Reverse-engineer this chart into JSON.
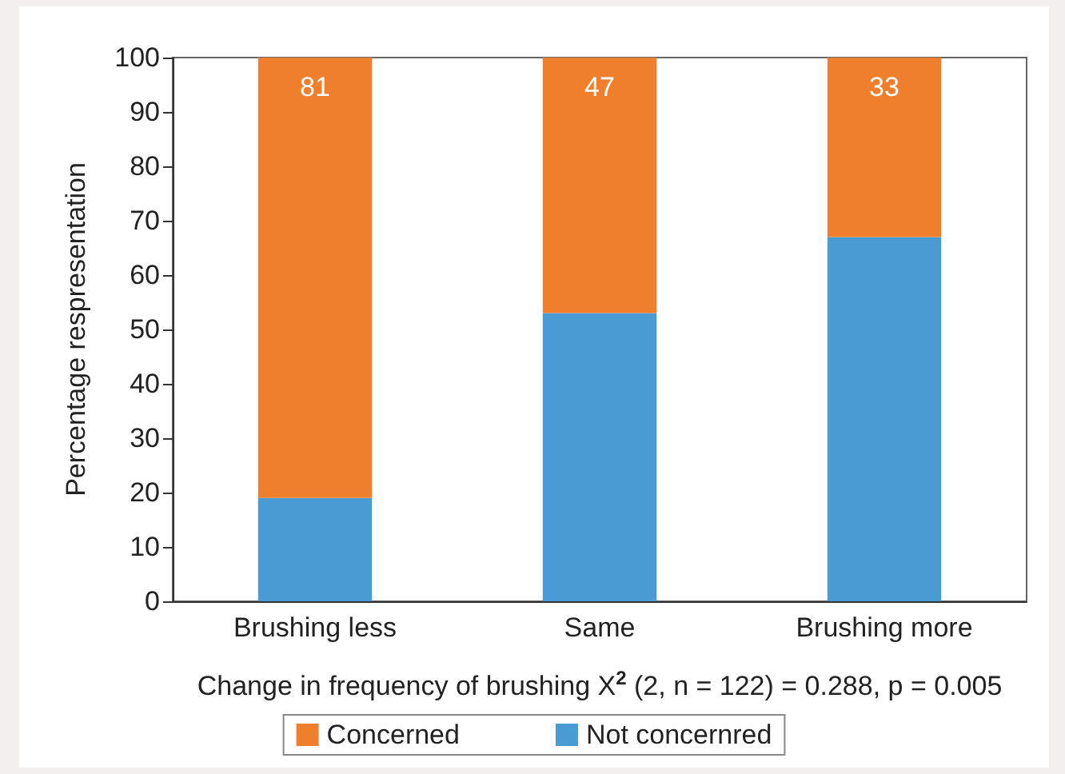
{
  "chart_data": {
    "type": "bar",
    "stacked": true,
    "categories": [
      "Brushing less",
      "Same",
      "Brushing more"
    ],
    "ylabel": "Percentage respresentation",
    "xlabel": "Change in frequency of brushing X$^{2}$ (2, n = 122) = 0.288, p = 0.005",
    "ylim": [
      0,
      100
    ],
    "yticks": [
      0,
      10,
      20,
      30,
      40,
      50,
      60,
      70,
      80,
      90,
      100
    ],
    "grid": false,
    "legend": "bottom",
    "series": [
      {
        "name": "Not concernred",
        "color": "#4a9ad4",
        "values": [
          19,
          53,
          67
        ]
      },
      {
        "name": "Concerned",
        "color": "#f07f2d",
        "values": [
          81,
          47,
          33
        ],
        "value_labels": [
          "81",
          "47",
          "33"
        ]
      }
    ]
  }
}
